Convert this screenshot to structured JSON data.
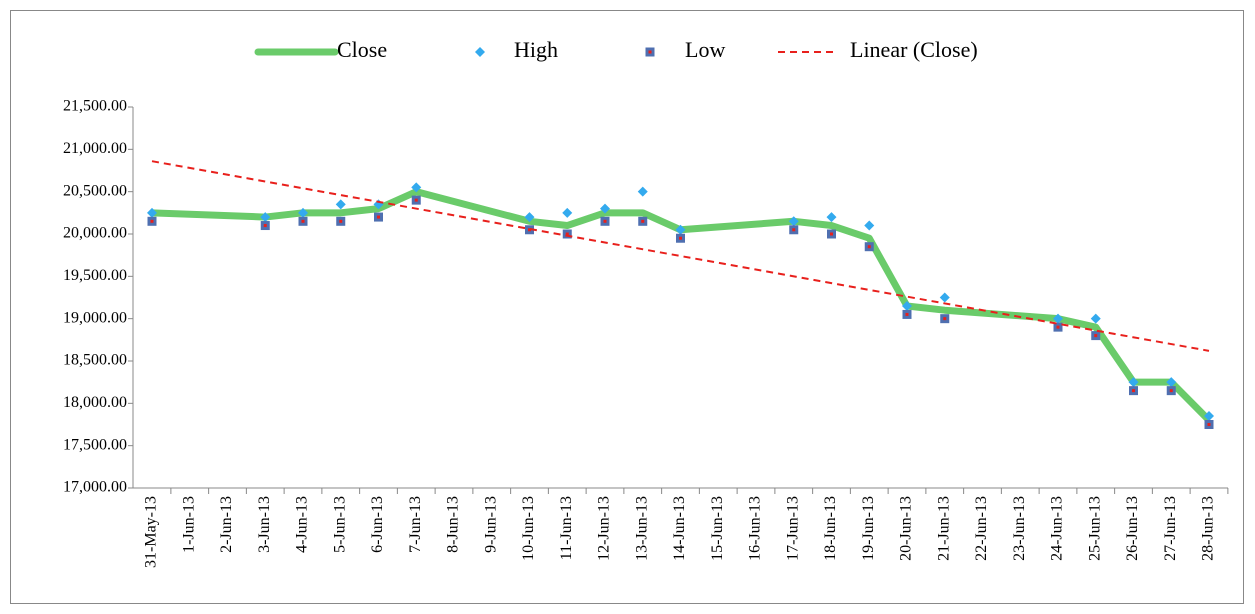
{
  "chart_data": {
    "type": "line",
    "xticks": [
      "31-May-13",
      "1-Jun-13",
      "2-Jun-13",
      "3-Jun-13",
      "4-Jun-13",
      "5-Jun-13",
      "6-Jun-13",
      "7-Jun-13",
      "8-Jun-13",
      "9-Jun-13",
      "10-Jun-13",
      "11-Jun-13",
      "12-Jun-13",
      "13-Jun-13",
      "14-Jun-13",
      "15-Jun-13",
      "16-Jun-13",
      "17-Jun-13",
      "18-Jun-13",
      "19-Jun-13",
      "20-Jun-13",
      "21-Jun-13",
      "22-Jun-13",
      "23-Jun-13",
      "24-Jun-13",
      "25-Jun-13",
      "26-Jun-13",
      "27-Jun-13",
      "28-Jun-13"
    ],
    "ylim": [
      17000,
      21500
    ],
    "yticks": [
      {
        "value": 17000,
        "label": "17,000.00"
      },
      {
        "value": 17500,
        "label": "17,500.00"
      },
      {
        "value": 18000,
        "label": "18,000.00"
      },
      {
        "value": 18500,
        "label": "18,500.00"
      },
      {
        "value": 19000,
        "label": "19,000.00"
      },
      {
        "value": 19500,
        "label": "19,500.00"
      },
      {
        "value": 20000,
        "label": "20,000.00"
      },
      {
        "value": 20500,
        "label": "20,500.00"
      },
      {
        "value": 21000,
        "label": "21,000.00"
      },
      {
        "value": 21500,
        "label": "21,500.00"
      }
    ],
    "legend": "top",
    "series": [
      {
        "name": "Close",
        "color": "#6acb6a",
        "style": "line",
        "x": [
          "31-May-13",
          "3-Jun-13",
          "4-Jun-13",
          "5-Jun-13",
          "6-Jun-13",
          "7-Jun-13",
          "10-Jun-13",
          "11-Jun-13",
          "12-Jun-13",
          "13-Jun-13",
          "14-Jun-13",
          "17-Jun-13",
          "18-Jun-13",
          "19-Jun-13",
          "20-Jun-13",
          "21-Jun-13",
          "24-Jun-13",
          "25-Jun-13",
          "26-Jun-13",
          "27-Jun-13",
          "28-Jun-13"
        ],
        "values": [
          20250,
          20200,
          20250,
          20250,
          20300,
          20500,
          20150,
          20100,
          20250,
          20250,
          20050,
          20150,
          20100,
          19950,
          19150,
          19100,
          19000,
          18900,
          18250,
          18250,
          17800
        ]
      },
      {
        "name": "High",
        "color": "#33aaee",
        "style": "diamond",
        "x": [
          "31-May-13",
          "3-Jun-13",
          "4-Jun-13",
          "5-Jun-13",
          "6-Jun-13",
          "7-Jun-13",
          "10-Jun-13",
          "11-Jun-13",
          "12-Jun-13",
          "13-Jun-13",
          "14-Jun-13",
          "17-Jun-13",
          "18-Jun-13",
          "19-Jun-13",
          "20-Jun-13",
          "21-Jun-13",
          "24-Jun-13",
          "25-Jun-13",
          "26-Jun-13",
          "27-Jun-13",
          "28-Jun-13"
        ],
        "values": [
          20250,
          20200,
          20250,
          20350,
          20350,
          20550,
          20200,
          20250,
          20300,
          20500,
          20050,
          20150,
          20200,
          20100,
          19150,
          19250,
          19000,
          19000,
          18250,
          18250,
          17850
        ]
      },
      {
        "name": "Low",
        "color": "#4f6fb0",
        "style": "square",
        "x": [
          "31-May-13",
          "3-Jun-13",
          "4-Jun-13",
          "5-Jun-13",
          "6-Jun-13",
          "7-Jun-13",
          "10-Jun-13",
          "11-Jun-13",
          "12-Jun-13",
          "13-Jun-13",
          "14-Jun-13",
          "17-Jun-13",
          "18-Jun-13",
          "19-Jun-13",
          "20-Jun-13",
          "21-Jun-13",
          "24-Jun-13",
          "25-Jun-13",
          "26-Jun-13",
          "27-Jun-13",
          "28-Jun-13"
        ],
        "values": [
          20150,
          20100,
          20150,
          20150,
          20200,
          20400,
          20050,
          20000,
          20150,
          20150,
          19950,
          20050,
          20000,
          19850,
          19050,
          19000,
          18900,
          18800,
          18150,
          18150,
          17750
        ]
      },
      {
        "name": "Linear (Close)",
        "color": "#e8201c",
        "style": "dashed",
        "x": [
          "31-May-13",
          "28-Jun-13"
        ],
        "values": [
          20860,
          18620
        ]
      }
    ]
  }
}
